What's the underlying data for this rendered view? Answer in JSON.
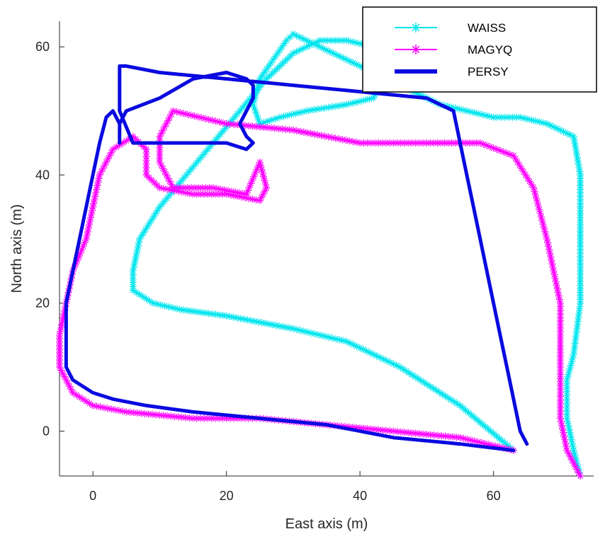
{
  "chart_data": {
    "type": "line",
    "xlabel": "East axis (m)",
    "ylabel": "North axis (m)",
    "xlim": [
      -5,
      75
    ],
    "ylim": [
      -7,
      64
    ],
    "xticks": [
      0,
      20,
      40,
      60
    ],
    "yticks": [
      0,
      20,
      40,
      60
    ],
    "grid": false,
    "legend_position": "top-right",
    "series": [
      {
        "name": "WAISS",
        "color": "#00e5ee",
        "marker": "star",
        "x": [
          63,
          55,
          46,
          38,
          30,
          20,
          13,
          9,
          6,
          6,
          7,
          10,
          14,
          18,
          22,
          26,
          30,
          34,
          38,
          42,
          43,
          44,
          43,
          42,
          38,
          32,
          28,
          25,
          24,
          25,
          27,
          29,
          30,
          32,
          36,
          42,
          48,
          52,
          56,
          60,
          64,
          68,
          72,
          73,
          73,
          73,
          72,
          71,
          71,
          72,
          73
        ],
        "y": [
          -3,
          4,
          10,
          14,
          16,
          18,
          19,
          20,
          22,
          25,
          30,
          35,
          40,
          45,
          50,
          55,
          59,
          61,
          61,
          60,
          58,
          56,
          54,
          52,
          51,
          50,
          49,
          48,
          51,
          55,
          58,
          61,
          62,
          61,
          59,
          56,
          53,
          51,
          50,
          49,
          49,
          48,
          46,
          40,
          30,
          20,
          12,
          8,
          2,
          -3,
          -7
        ]
      },
      {
        "name": "MAGYQ",
        "color": "#ff00ff",
        "marker": "star",
        "x": [
          63,
          55,
          45,
          35,
          25,
          15,
          5,
          0,
          -3,
          -5,
          -5,
          -4,
          -3,
          -1,
          0,
          1,
          3,
          6,
          8,
          8,
          10,
          15,
          20,
          25,
          26,
          25,
          23,
          18,
          12,
          10,
          10,
          12,
          20,
          30,
          40,
          50,
          58,
          63,
          66,
          68,
          70,
          70,
          70,
          71,
          73
        ],
        "y": [
          -3,
          -1,
          0,
          1,
          2,
          2,
          3,
          4,
          6,
          10,
          15,
          20,
          25,
          30,
          35,
          40,
          44,
          46,
          44,
          40,
          38,
          37,
          37,
          36,
          38,
          42,
          37,
          38,
          38,
          42,
          46,
          50,
          48,
          47,
          45,
          45,
          45,
          43,
          38,
          30,
          20,
          10,
          2,
          -3,
          -7
        ]
      },
      {
        "name": "PERSY",
        "color": "#0a0ae0",
        "marker": "none",
        "x": [
          63,
          55,
          45,
          35,
          25,
          15,
          8,
          3,
          0,
          -3,
          -4,
          -4,
          -4,
          -3,
          -2,
          -1,
          0,
          1,
          2,
          3,
          4,
          4,
          4,
          4,
          5,
          10,
          15,
          20,
          23,
          24,
          24,
          23,
          22,
          23,
          24,
          23,
          20,
          15,
          10,
          6,
          4,
          4,
          4,
          4,
          5,
          10,
          20,
          30,
          40,
          50,
          54,
          55,
          56,
          57,
          58,
          59,
          60,
          61,
          62,
          63,
          64,
          65
        ],
        "y": [
          -3,
          -2,
          -1,
          1,
          2,
          3,
          4,
          5,
          6,
          8,
          10,
          15,
          20,
          25,
          30,
          35,
          40,
          45,
          49,
          50,
          48,
          46,
          45,
          48,
          50,
          52,
          55,
          56,
          55,
          54,
          52,
          50,
          48,
          46,
          45,
          44,
          45,
          45,
          45,
          45,
          50,
          54,
          56,
          57,
          57,
          56,
          55,
          54,
          53,
          52,
          50,
          45,
          40,
          35,
          30,
          25,
          20,
          15,
          10,
          5,
          0,
          -2
        ]
      }
    ]
  }
}
